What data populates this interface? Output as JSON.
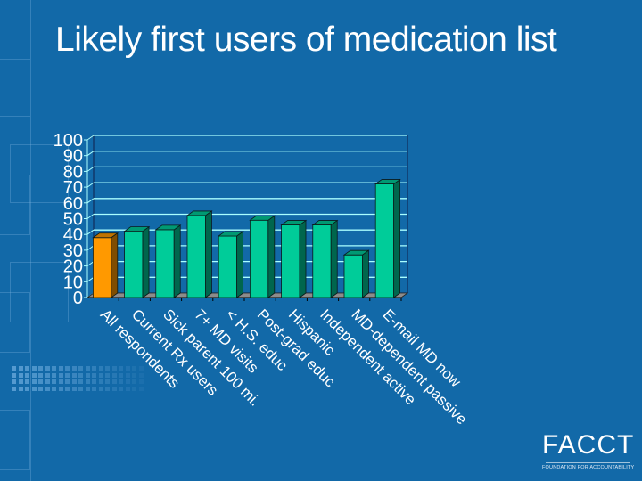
{
  "slide": {
    "title": "Likely first users of medication list",
    "background_color": "#1269a8"
  },
  "logo": {
    "name": "FACCT",
    "subtitle": "FOUNDATION FOR ACCOUNTABILITY"
  },
  "chart_data": {
    "type": "bar",
    "style": "3d-column",
    "title": "",
    "xlabel": "",
    "ylabel": "",
    "ylim": [
      0,
      100
    ],
    "yticks": [
      0,
      10,
      20,
      30,
      40,
      50,
      60,
      70,
      80,
      90,
      100
    ],
    "grid": true,
    "legend": "none",
    "categories": [
      "All respondents",
      "Current Rx users",
      "Sick parent 100 mi.",
      "7+ MD visits",
      "< H.S. educ",
      "Post-grad educ",
      "Hispanic",
      "Independent active",
      "MD-dependent passive",
      "E-mail MD now"
    ],
    "values": [
      38,
      42,
      43,
      52,
      39,
      49,
      46,
      46,
      27,
      72
    ],
    "bar_colors": [
      "#ff9900",
      "#00cc99",
      "#00cc99",
      "#00cc99",
      "#00cc99",
      "#00cc99",
      "#00cc99",
      "#00cc99",
      "#00cc99",
      "#00cc99"
    ],
    "colors": {
      "highlight": "#ff9900",
      "bars": "#00cc99",
      "gridlines": "#aaffff",
      "floor": "#8c8c8c",
      "axis_text": "#ffffff"
    }
  }
}
